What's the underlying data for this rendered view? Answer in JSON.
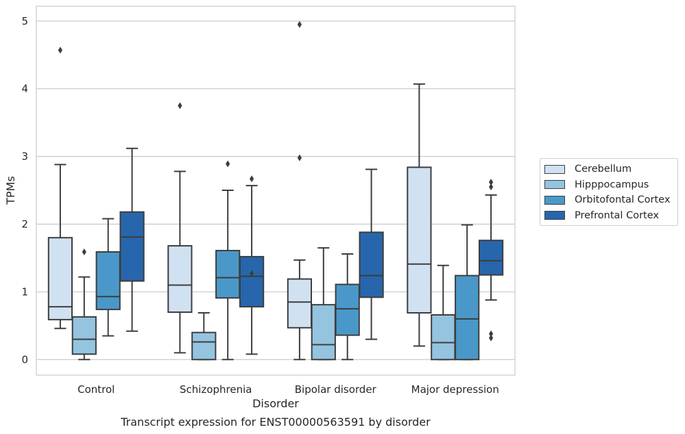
{
  "chart_data": {
    "type": "box",
    "title": "Transcript expression for ENST00000563591 by disorder",
    "xlabel": "Disorder",
    "ylabel": "TPMs",
    "ylim": [
      -0.23,
      5.22
    ],
    "yticks": [
      0,
      1,
      2,
      3,
      4,
      5
    ],
    "grid": "horizontal",
    "legend_position": "right",
    "categories": [
      "Control",
      "Schizophrenia",
      "Bipolar disorder",
      "Major depression"
    ],
    "series": [
      {
        "name": "Cerebellum",
        "color": "#d0e1f2",
        "boxes": [
          {
            "whisker_low": 0.46,
            "q1": 0.59,
            "median": 0.78,
            "q3": 1.8,
            "whisker_high": 2.88,
            "outliers": [
              4.57
            ]
          },
          {
            "whisker_low": 0.1,
            "q1": 0.7,
            "median": 1.1,
            "q3": 1.68,
            "whisker_high": 2.78,
            "outliers": [
              3.75
            ]
          },
          {
            "whisker_low": 0.0,
            "q1": 0.47,
            "median": 0.85,
            "q3": 1.19,
            "whisker_high": 1.47,
            "outliers": [
              2.98,
              4.95
            ]
          },
          {
            "whisker_low": 0.2,
            "q1": 0.69,
            "median": 1.41,
            "q3": 2.84,
            "whisker_high": 4.07,
            "outliers": []
          }
        ]
      },
      {
        "name": "Hipppocampus",
        "color": "#94c4df",
        "boxes": [
          {
            "whisker_low": 0.0,
            "q1": 0.08,
            "median": 0.3,
            "q3": 0.63,
            "whisker_high": 1.22,
            "outliers": [
              1.59
            ]
          },
          {
            "whisker_low": 0.0,
            "q1": 0.0,
            "median": 0.26,
            "q3": 0.4,
            "whisker_high": 0.69,
            "outliers": []
          },
          {
            "whisker_low": 0.0,
            "q1": 0.0,
            "median": 0.22,
            "q3": 0.81,
            "whisker_high": 1.65,
            "outliers": []
          },
          {
            "whisker_low": 0.0,
            "q1": 0.0,
            "median": 0.25,
            "q3": 0.66,
            "whisker_high": 1.39,
            "outliers": []
          }
        ]
      },
      {
        "name": "Orbitofontal Cortex",
        "color": "#4a98c9",
        "boxes": [
          {
            "whisker_low": 0.35,
            "q1": 0.74,
            "median": 0.93,
            "q3": 1.59,
            "whisker_high": 2.08,
            "outliers": []
          },
          {
            "whisker_low": 0.0,
            "q1": 0.91,
            "median": 1.21,
            "q3": 1.61,
            "whisker_high": 2.5,
            "outliers": [
              2.89
            ]
          },
          {
            "whisker_low": 0.0,
            "q1": 0.36,
            "median": 0.75,
            "q3": 1.11,
            "whisker_high": 1.56,
            "outliers": []
          },
          {
            "whisker_low": 0.0,
            "q1": 0.0,
            "median": 0.6,
            "q3": 1.24,
            "whisker_high": 1.99,
            "outliers": []
          }
        ]
      },
      {
        "name": "Prefrontal Cortex",
        "color": "#2766ac",
        "boxes": [
          {
            "whisker_low": 0.42,
            "q1": 1.16,
            "median": 1.81,
            "q3": 2.18,
            "whisker_high": 3.12,
            "outliers": []
          },
          {
            "whisker_low": 0.08,
            "q1": 0.78,
            "median": 1.23,
            "q3": 1.52,
            "whisker_high": 2.57,
            "outliers": [
              2.67,
              1.27
            ]
          },
          {
            "whisker_low": 0.3,
            "q1": 0.92,
            "median": 1.24,
            "q3": 1.88,
            "whisker_high": 2.81,
            "outliers": []
          },
          {
            "whisker_low": 0.88,
            "q1": 1.25,
            "median": 1.46,
            "q3": 1.76,
            "whisker_high": 2.43,
            "outliers": [
              2.55,
              2.62,
              0.32,
              0.38
            ]
          }
        ]
      }
    ]
  }
}
